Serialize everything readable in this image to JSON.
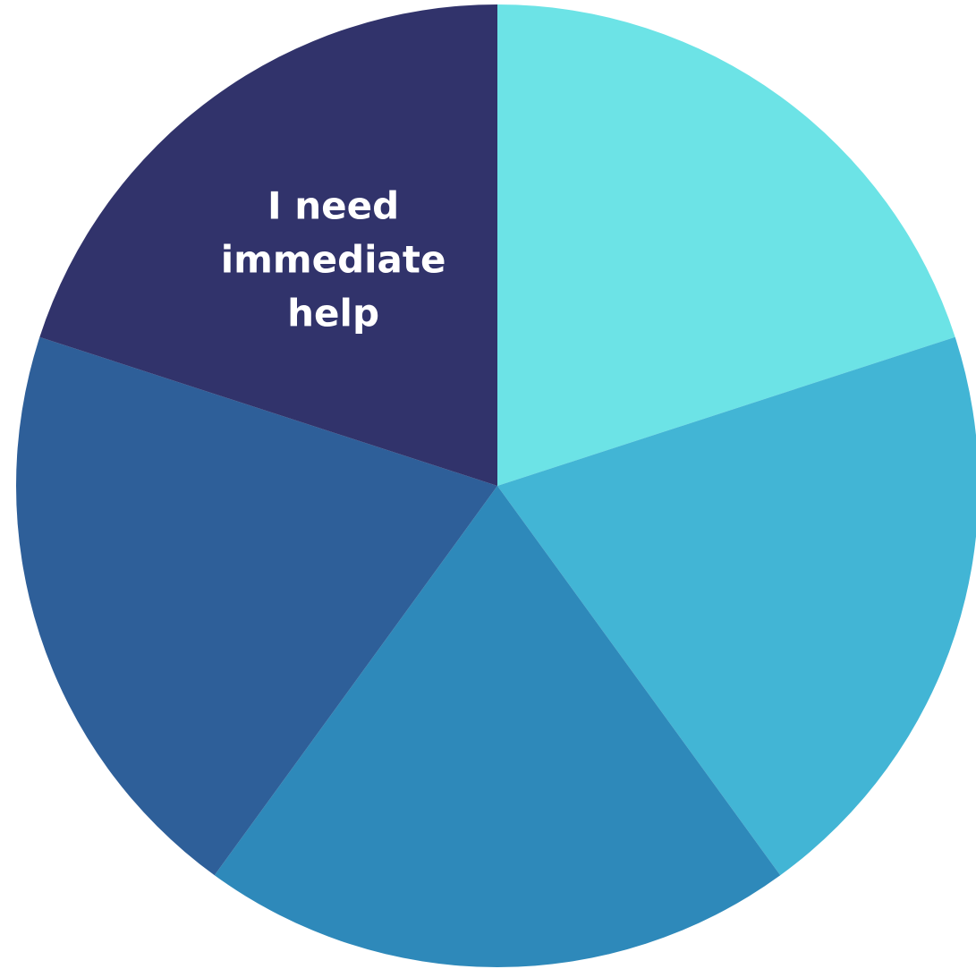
{
  "chart_data": {
    "type": "pie",
    "title": "",
    "slices": [
      {
        "label": "",
        "value": 20,
        "color": "#6CE3E6"
      },
      {
        "label": "",
        "value": 20,
        "color": "#42B5D5"
      },
      {
        "label": "",
        "value": 20,
        "color": "#2E89BA"
      },
      {
        "label": "",
        "value": 20,
        "color": "#2E5F99"
      },
      {
        "label": "I need immediate help",
        "value": 20,
        "color": "#31336B"
      }
    ],
    "legend": "none",
    "start": "top",
    "direction": "clockwise"
  }
}
